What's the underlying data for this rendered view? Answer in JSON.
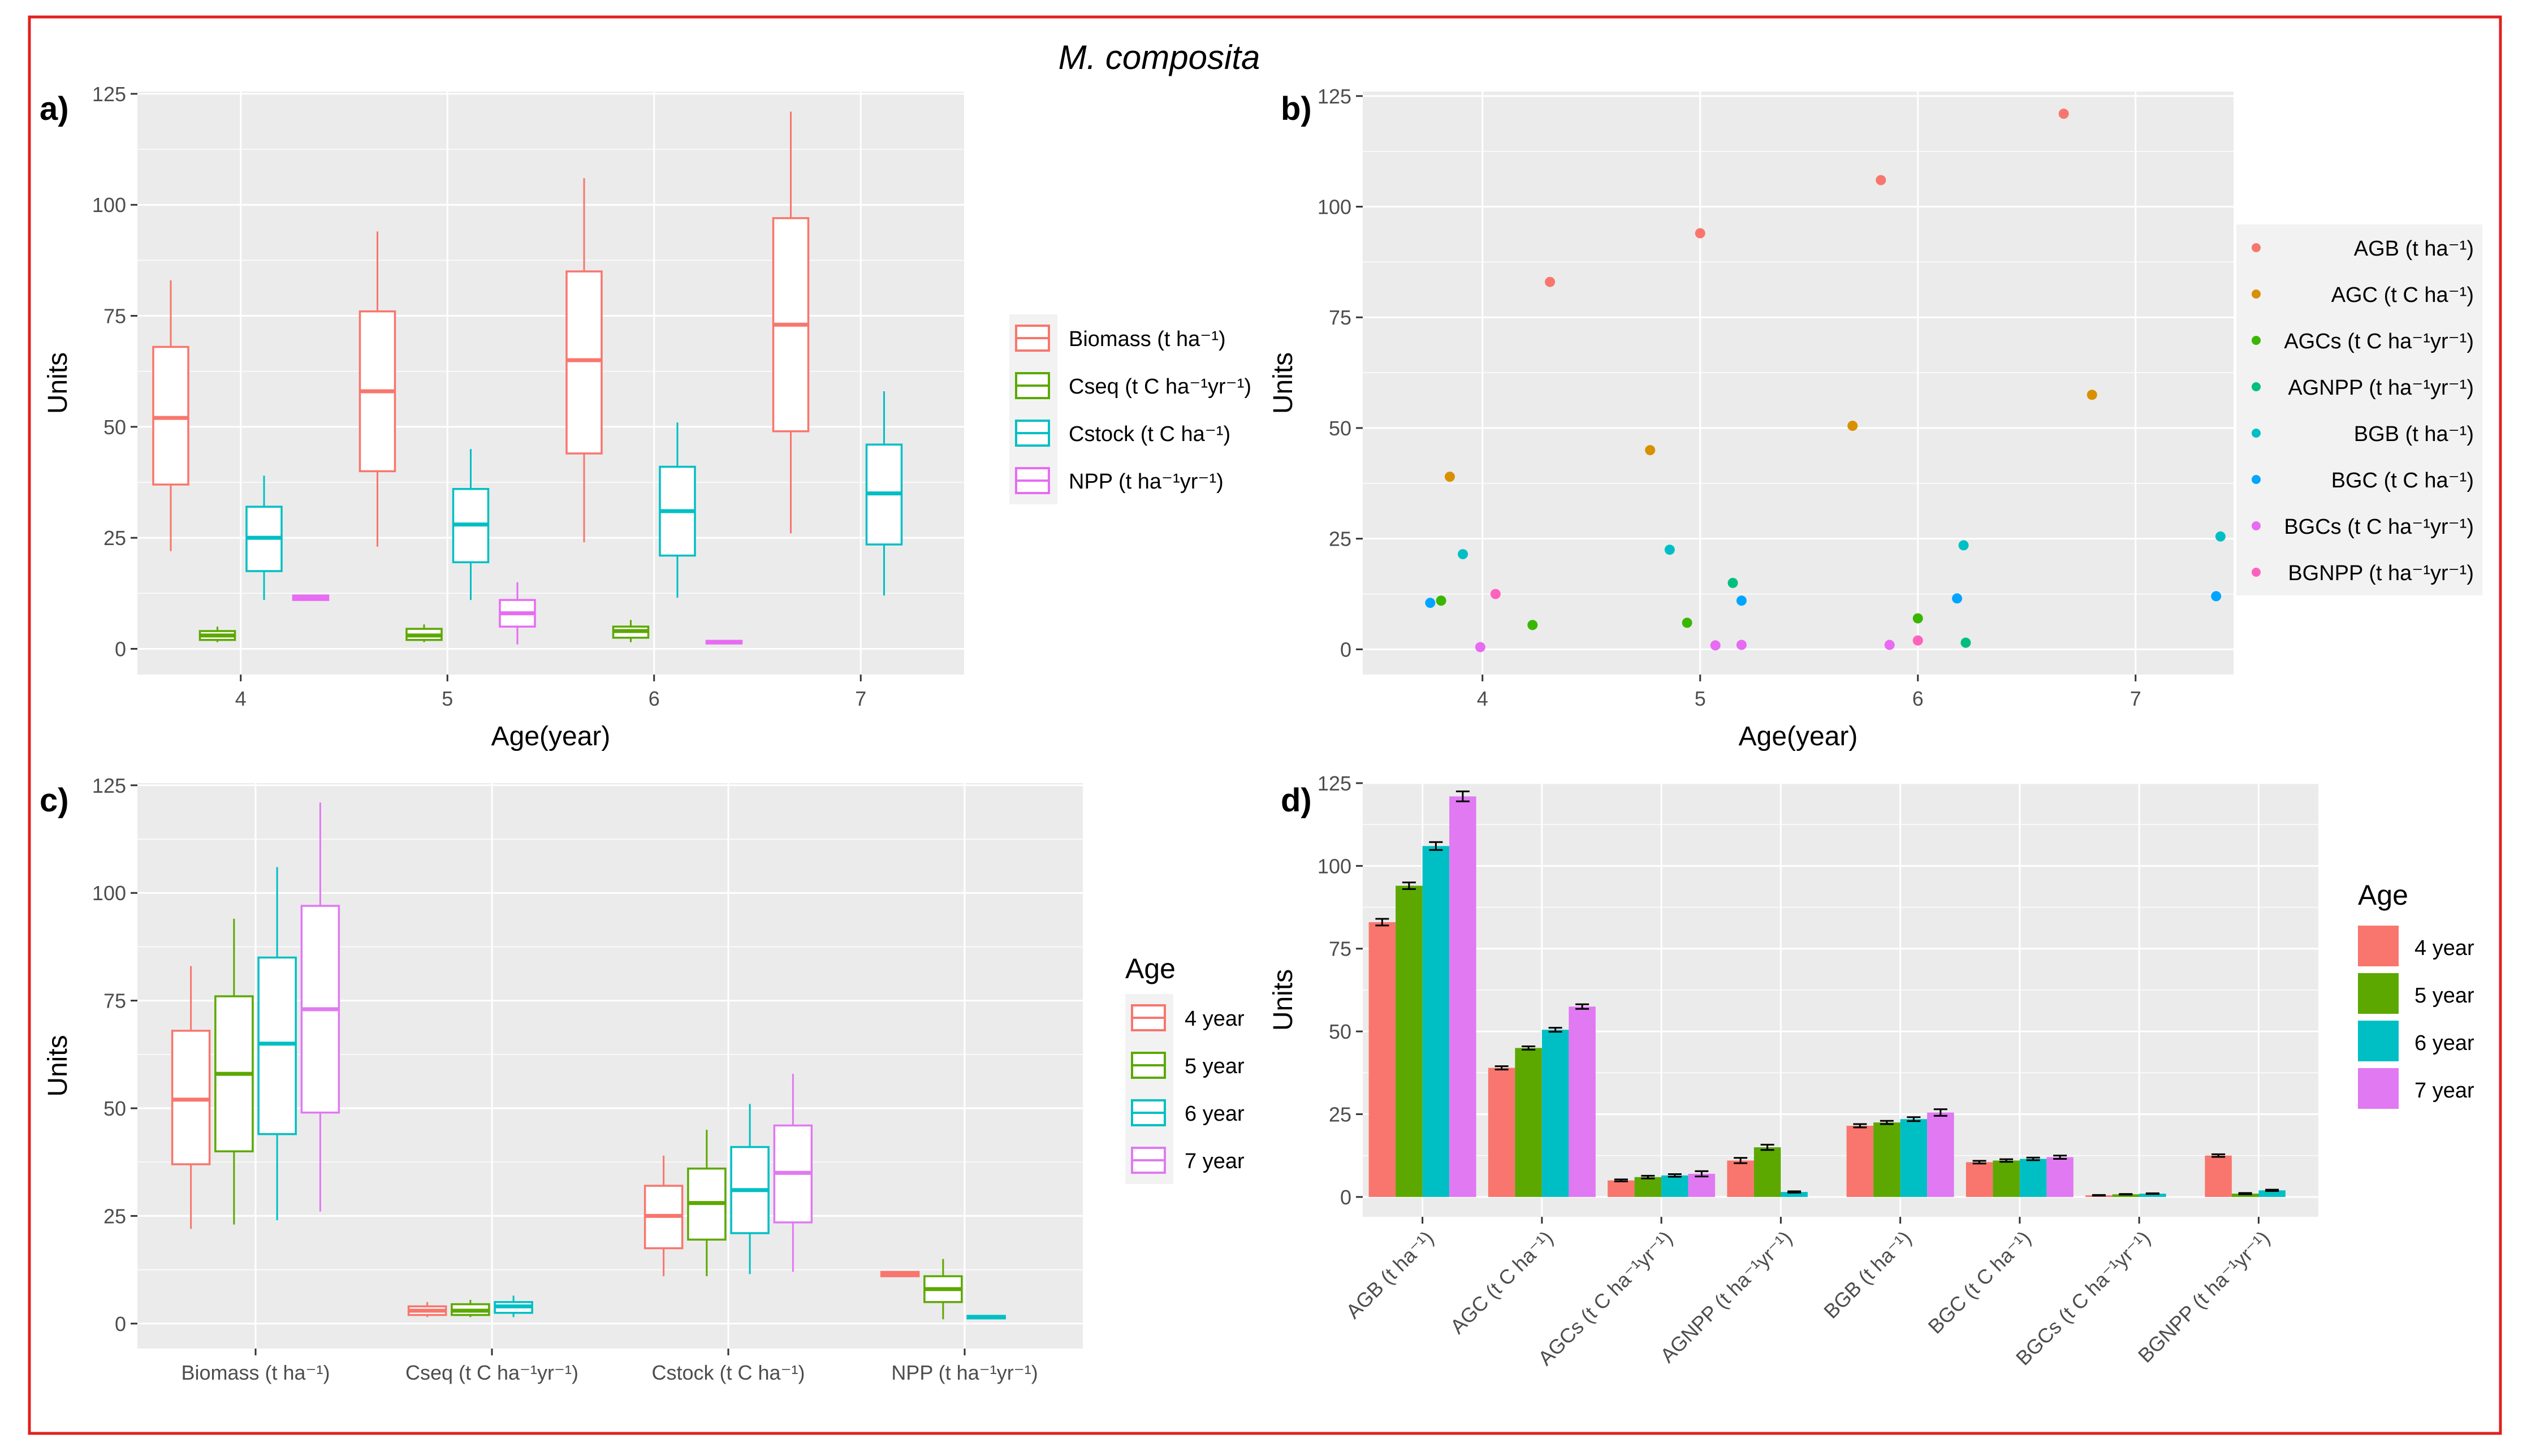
{
  "title": "M. composita",
  "colors": {
    "Biomass": "#f8766d",
    "Cseq": "#5ca800",
    "Cstock": "#00bfc4",
    "NPP": "#e76bf3",
    "age4": "#f8766d",
    "age5": "#5ca800",
    "age6": "#00bfc4",
    "age7": "#e079f2",
    "AGB": "#f8766d",
    "AGC": "#d89000",
    "AGCs": "#39b600",
    "AGNPP": "#00bf7d",
    "BGB": "#00bfc4",
    "BGC": "#00a5ff",
    "BGCs": "#e76bf3",
    "BGNPP": "#ff62bc"
  },
  "chart_data": [
    {
      "id": "a",
      "label": "a)",
      "type": "box",
      "xlabel": "Age(year)",
      "ylabel": "Units",
      "ylim": [
        0,
        125
      ],
      "yticks": [
        "0",
        "25",
        "50",
        "75",
        "100",
        "125"
      ],
      "categories": [
        "4",
        "5",
        "6",
        "7"
      ],
      "legend": [
        {
          "key": "Biomass",
          "text": "Biomass (t ha⁻¹)"
        },
        {
          "key": "Cseq",
          "text": "Cseq (t C ha⁻¹yr⁻¹)"
        },
        {
          "key": "Cstock",
          "text": "Cstock (t C ha⁻¹)"
        },
        {
          "key": "NPP",
          "text": "NPP (t ha⁻¹yr⁻¹)"
        }
      ],
      "boxes": [
        {
          "cat": 0,
          "series": "Biomass",
          "min": 22,
          "q1": 37,
          "med": 52,
          "q3": 68,
          "max": 83
        },
        {
          "cat": 0,
          "series": "Cseq",
          "min": 1.5,
          "q1": 2,
          "med": 3,
          "q3": 4,
          "max": 5
        },
        {
          "cat": 0,
          "series": "Cstock",
          "min": 11,
          "q1": 17.5,
          "med": 25,
          "q3": 32,
          "max": 39
        },
        {
          "cat": 0,
          "series": "NPP",
          "min": 11,
          "q1": 11,
          "med": 11.5,
          "q3": 12,
          "max": 12
        },
        {
          "cat": 1,
          "series": "Biomass",
          "min": 23,
          "q1": 40,
          "med": 58,
          "q3": 76,
          "max": 94
        },
        {
          "cat": 1,
          "series": "Cseq",
          "min": 1.5,
          "q1": 2,
          "med": 3,
          "q3": 4.5,
          "max": 5.5
        },
        {
          "cat": 1,
          "series": "Cstock",
          "min": 11,
          "q1": 19.5,
          "med": 28,
          "q3": 36,
          "max": 45
        },
        {
          "cat": 1,
          "series": "NPP",
          "min": 1,
          "q1": 5,
          "med": 8,
          "q3": 11,
          "max": 15
        },
        {
          "cat": 2,
          "series": "Biomass",
          "min": 24,
          "q1": 44,
          "med": 65,
          "q3": 85,
          "max": 106
        },
        {
          "cat": 2,
          "series": "Cseq",
          "min": 1.5,
          "q1": 2.5,
          "med": 4,
          "q3": 5,
          "max": 6.5
        },
        {
          "cat": 2,
          "series": "Cstock",
          "min": 11.5,
          "q1": 21,
          "med": 31,
          "q3": 41,
          "max": 51
        },
        {
          "cat": 2,
          "series": "NPP",
          "min": 1.2,
          "q1": 1.2,
          "med": 1.5,
          "q3": 1.8,
          "max": 1.8
        },
        {
          "cat": 3,
          "series": "Biomass",
          "min": 26,
          "q1": 49,
          "med": 73,
          "q3": 97,
          "max": 121
        },
        {
          "cat": 3,
          "series": "Cstock",
          "min": 12,
          "q1": 23.5,
          "med": 35,
          "q3": 46,
          "max": 58
        }
      ]
    },
    {
      "id": "b",
      "label": "b)",
      "type": "scatter",
      "xlabel": "Age(year)",
      "ylabel": "Units",
      "xlim": [
        3.45,
        7.45
      ],
      "ylim": [
        -5.7,
        126
      ],
      "xticks": [
        "4",
        "5",
        "6",
        "7"
      ],
      "yticks": [
        "0",
        "25",
        "50",
        "75",
        "100",
        "125"
      ],
      "legend": [
        {
          "key": "AGB",
          "text": "AGB (t ha⁻¹)"
        },
        {
          "key": "AGC",
          "text": "AGC (t C ha⁻¹)"
        },
        {
          "key": "AGCs",
          "text": "AGCs (t C ha⁻¹yr⁻¹)"
        },
        {
          "key": "AGNPP",
          "text": "AGNPP (t ha⁻¹yr⁻¹)"
        },
        {
          "key": "BGB",
          "text": "BGB (t ha⁻¹)"
        },
        {
          "key": "BGC",
          "text": "BGC (t C ha⁻¹)"
        },
        {
          "key": "BGCs",
          "text": "BGCs (t C ha⁻¹yr⁻¹)"
        },
        {
          "key": "BGNPP",
          "text": "BGNPP (t ha⁻¹yr⁻¹)"
        }
      ],
      "points": [
        {
          "series": "AGB",
          "x": 4.31,
          "y": 83
        },
        {
          "series": "AGB",
          "x": 5.0,
          "y": 94
        },
        {
          "series": "AGB",
          "x": 5.83,
          "y": 106
        },
        {
          "series": "AGB",
          "x": 6.67,
          "y": 121
        },
        {
          "series": "AGC",
          "x": 3.85,
          "y": 39
        },
        {
          "series": "AGC",
          "x": 4.77,
          "y": 45
        },
        {
          "series": "AGC",
          "x": 5.7,
          "y": 50.5
        },
        {
          "series": "AGC",
          "x": 6.8,
          "y": 57.5
        },
        {
          "series": "AGCs",
          "x": 4.23,
          "y": 5.5
        },
        {
          "series": "AGCs",
          "x": 4.94,
          "y": 6
        },
        {
          "series": "AGCs",
          "x": 6.0,
          "y": 7
        },
        {
          "series": "AGCs",
          "x": 3.81,
          "y": 11
        },
        {
          "series": "AGNPP",
          "x": 5.15,
          "y": 15
        },
        {
          "series": "AGNPP",
          "x": 6.22,
          "y": 1.5
        },
        {
          "series": "BGB",
          "x": 3.91,
          "y": 21.5
        },
        {
          "series": "BGB",
          "x": 4.86,
          "y": 22.5
        },
        {
          "series": "BGB",
          "x": 6.21,
          "y": 23.5
        },
        {
          "series": "BGB",
          "x": 7.39,
          "y": 25.5
        },
        {
          "series": "BGC",
          "x": 3.76,
          "y": 10.5
        },
        {
          "series": "BGC",
          "x": 5.19,
          "y": 11
        },
        {
          "series": "BGC",
          "x": 6.18,
          "y": 11.5
        },
        {
          "series": "BGC",
          "x": 7.37,
          "y": 12
        },
        {
          "series": "BGCs",
          "x": 3.99,
          "y": 0.5
        },
        {
          "series": "BGCs",
          "x": 5.07,
          "y": 0.9
        },
        {
          "series": "BGCs",
          "x": 5.19,
          "y": 1.0
        },
        {
          "series": "BGCs",
          "x": 5.87,
          "y": 1.0
        },
        {
          "series": "BGNPP",
          "x": 4.06,
          "y": 12.5
        },
        {
          "series": "BGNPP",
          "x": 6.0,
          "y": 2
        }
      ]
    },
    {
      "id": "c",
      "label": "c)",
      "type": "box",
      "xlabel": "",
      "ylabel": "Units",
      "ylim": [
        0,
        125
      ],
      "yticks": [
        "0",
        "25",
        "50",
        "75",
        "100",
        "125"
      ],
      "categories": [
        "Biomass (t ha⁻¹)",
        "Cseq (t C ha⁻¹yr⁻¹)",
        "Cstock (t C ha⁻¹)",
        "NPP (t ha⁻¹yr⁻¹)"
      ],
      "legend_title": "Age",
      "legend": [
        {
          "key": "age4",
          "text": "4 year"
        },
        {
          "key": "age5",
          "text": "5 year"
        },
        {
          "key": "age6",
          "text": "6 year"
        },
        {
          "key": "age7",
          "text": "7 year"
        }
      ],
      "boxes": [
        {
          "cat": 0,
          "series": "age4",
          "min": 22,
          "q1": 37,
          "med": 52,
          "q3": 68,
          "max": 83
        },
        {
          "cat": 0,
          "series": "age5",
          "min": 23,
          "q1": 40,
          "med": 58,
          "q3": 76,
          "max": 94
        },
        {
          "cat": 0,
          "series": "age6",
          "min": 24,
          "q1": 44,
          "med": 65,
          "q3": 85,
          "max": 106
        },
        {
          "cat": 0,
          "series": "age7",
          "min": 26,
          "q1": 49,
          "med": 73,
          "q3": 97,
          "max": 121
        },
        {
          "cat": 1,
          "series": "age4",
          "min": 1.5,
          "q1": 2,
          "med": 3,
          "q3": 4,
          "max": 5
        },
        {
          "cat": 1,
          "series": "age5",
          "min": 1.5,
          "q1": 2,
          "med": 3,
          "q3": 4.5,
          "max": 5.5
        },
        {
          "cat": 1,
          "series": "age6",
          "min": 1.5,
          "q1": 2.5,
          "med": 4,
          "q3": 5,
          "max": 6.5
        },
        {
          "cat": 2,
          "series": "age4",
          "min": 11,
          "q1": 17.5,
          "med": 25,
          "q3": 32,
          "max": 39
        },
        {
          "cat": 2,
          "series": "age5",
          "min": 11,
          "q1": 19.5,
          "med": 28,
          "q3": 36,
          "max": 45
        },
        {
          "cat": 2,
          "series": "age6",
          "min": 11.5,
          "q1": 21,
          "med": 31,
          "q3": 41,
          "max": 51
        },
        {
          "cat": 2,
          "series": "age7",
          "min": 12,
          "q1": 23.5,
          "med": 35,
          "q3": 46,
          "max": 58
        },
        {
          "cat": 3,
          "series": "age4",
          "min": 11,
          "q1": 11,
          "med": 11.5,
          "q3": 12,
          "max": 12
        },
        {
          "cat": 3,
          "series": "age5",
          "min": 1,
          "q1": 5,
          "med": 8,
          "q3": 11,
          "max": 15
        },
        {
          "cat": 3,
          "series": "age6",
          "min": 1.2,
          "q1": 1.2,
          "med": 1.5,
          "q3": 1.8,
          "max": 1.8
        }
      ]
    },
    {
      "id": "d",
      "label": "d)",
      "type": "bar",
      "xlabel": "",
      "ylabel": "Units",
      "ylim": [
        -6,
        125
      ],
      "yticks": [
        "0",
        "25",
        "50",
        "75",
        "100",
        "125"
      ],
      "categories": [
        "AGB (t ha⁻¹)",
        "AGC (t C ha⁻¹)",
        "AGCs (t C ha⁻¹yr⁻¹)",
        "AGNPP (t ha⁻¹yr⁻¹)",
        "BGB (t ha⁻¹)",
        "BGC (t C ha⁻¹)",
        "BGCs (t C ha⁻¹yr⁻¹)",
        "BGNPP (t ha⁻¹yr⁻¹)"
      ],
      "legend_title": "Age",
      "legend": [
        {
          "key": "age4",
          "text": "4 year"
        },
        {
          "key": "age5",
          "text": "5 year"
        },
        {
          "key": "age6",
          "text": "6 year"
        },
        {
          "key": "age7",
          "text": "7 year"
        }
      ],
      "series": [
        {
          "key": "age4",
          "name": "4 year",
          "values": [
            83,
            39,
            5,
            11,
            21.5,
            10.5,
            0.5,
            12.5
          ],
          "errors": [
            1,
            0.5,
            0.3,
            0.8,
            0.5,
            0.4,
            0.1,
            0.4
          ]
        },
        {
          "key": "age5",
          "name": "5 year",
          "values": [
            94,
            45,
            6,
            15,
            22.5,
            11,
            0.8,
            1
          ],
          "errors": [
            1,
            0.5,
            0.4,
            0.8,
            0.5,
            0.4,
            0.1,
            0.2
          ]
        },
        {
          "key": "age6",
          "name": "6 year",
          "values": [
            106,
            50.5,
            6.5,
            1.5,
            23.5,
            11.5,
            1,
            2
          ],
          "errors": [
            1.2,
            0.6,
            0.4,
            0.2,
            0.6,
            0.4,
            0.1,
            0.2
          ]
        },
        {
          "key": "age7",
          "name": "7 year",
          "values": [
            121,
            57.5,
            7,
            null,
            25.5,
            12,
            null,
            null
          ],
          "errors": [
            1.5,
            0.7,
            0.8,
            null,
            1,
            0.5,
            null,
            null
          ]
        }
      ]
    }
  ]
}
